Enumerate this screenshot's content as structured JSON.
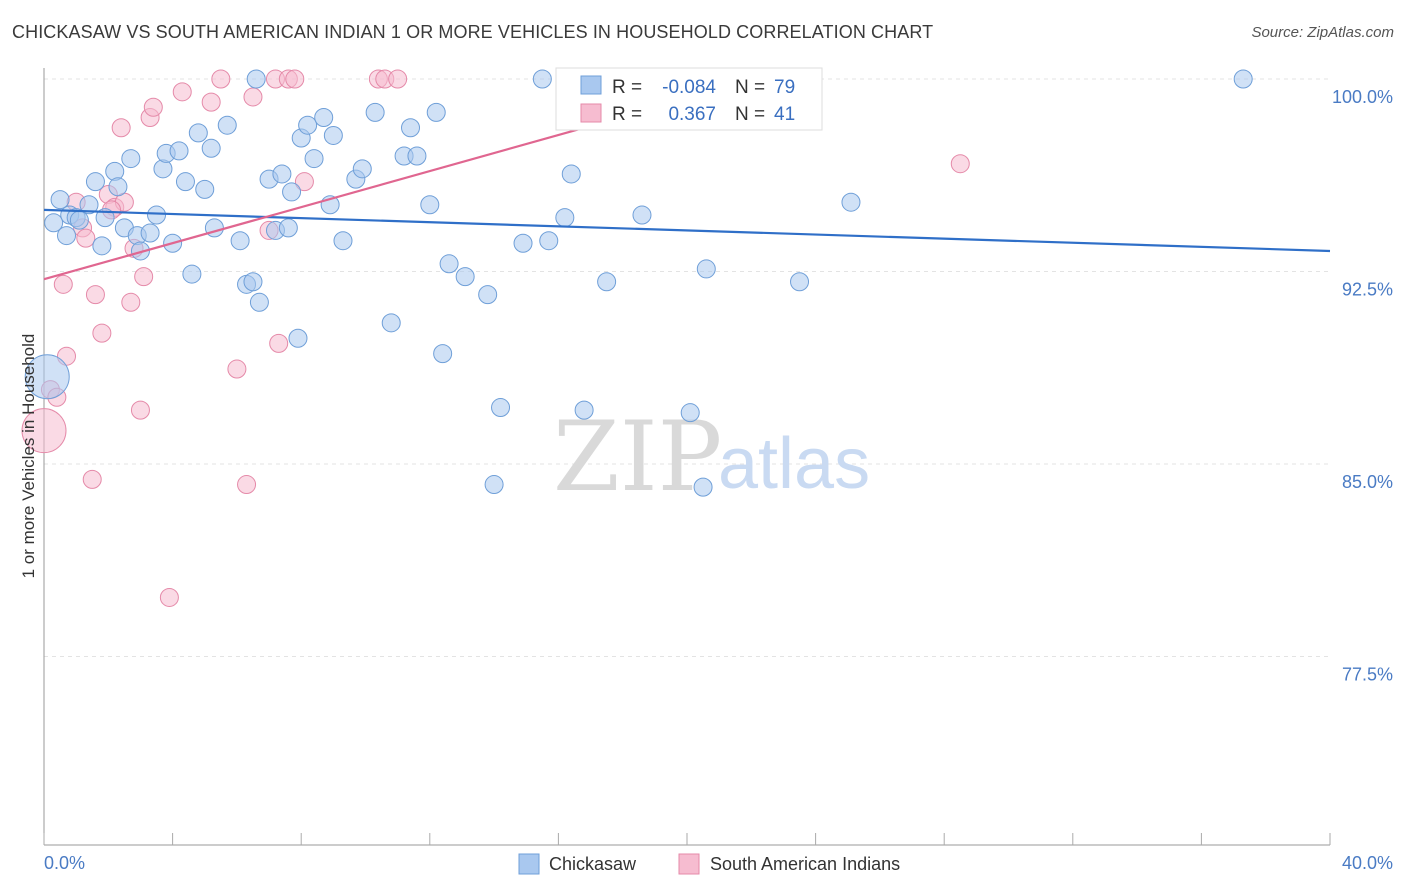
{
  "header": {
    "title": "CHICKASAW VS SOUTH AMERICAN INDIAN 1 OR MORE VEHICLES IN HOUSEHOLD CORRELATION CHART",
    "source": "Source: ZipAtlas.com"
  },
  "watermark": {
    "zip": "ZIP",
    "atlas": "atlas"
  },
  "colors": {
    "chickasaw_fill": "#a9c8ef",
    "chickasaw_stroke": "#6f9fd8",
    "chickasaw_line": "#2f6fc8",
    "sai_fill": "#f6bcd0",
    "sai_stroke": "#e58aa9",
    "sai_line": "#e06690",
    "tick_text": "#4a7bc4"
  },
  "stats": {
    "chickasaw": {
      "r_label": "R =",
      "r_value": "-0.084",
      "n_label": "N =",
      "n_value": "79"
    },
    "sai": {
      "r_label": "R =",
      "r_value": "0.367",
      "n_label": "N =",
      "n_value": "41"
    }
  },
  "chart_data": {
    "type": "scatter",
    "title": "CHICKASAW VS SOUTH AMERICAN INDIAN 1 OR MORE VEHICLES IN HOUSEHOLD CORRELATION CHART",
    "xlabel": "",
    "ylabel": "1 or more Vehicles in Household",
    "xlim": [
      0,
      40
    ],
    "ylim": [
      71.5,
      101.5
    ],
    "x_tick_labels": [
      {
        "value": 0,
        "label": "0.0%"
      },
      {
        "value": 40,
        "label": "40.0%"
      }
    ],
    "y_tick_labels": [
      {
        "value": 100,
        "label": "100.0%"
      },
      {
        "value": 92.5,
        "label": "92.5%"
      },
      {
        "value": 85,
        "label": "85.0%"
      },
      {
        "value": 77.5,
        "label": "77.5%"
      }
    ],
    "grid": true,
    "legend_position": "bottom-center",
    "series": [
      {
        "name": "Chickasaw",
        "trend": {
          "x": [
            0,
            40
          ],
          "y": [
            94.9,
            93.3
          ]
        },
        "points": [
          [
            0.1,
            88.4,
            22
          ],
          [
            0.3,
            94.4,
            9
          ],
          [
            0.5,
            95.3,
            9
          ],
          [
            0.7,
            93.9,
            9
          ],
          [
            0.8,
            94.7,
            9
          ],
          [
            1.0,
            94.6,
            9
          ],
          [
            1.1,
            94.5,
            9
          ],
          [
            1.4,
            95.1,
            9
          ],
          [
            1.6,
            96.0,
            9
          ],
          [
            1.8,
            93.5,
            9
          ],
          [
            1.9,
            94.6,
            9
          ],
          [
            2.2,
            96.4,
            9
          ],
          [
            2.3,
            95.8,
            9
          ],
          [
            2.5,
            94.2,
            9
          ],
          [
            2.7,
            96.9,
            9
          ],
          [
            2.9,
            93.9,
            9
          ],
          [
            3.0,
            93.3,
            9
          ],
          [
            3.3,
            94.0,
            9
          ],
          [
            3.5,
            94.7,
            9
          ],
          [
            3.7,
            96.5,
            9
          ],
          [
            3.8,
            97.1,
            9
          ],
          [
            4.0,
            93.6,
            9
          ],
          [
            4.2,
            97.2,
            9
          ],
          [
            4.4,
            96.0,
            9
          ],
          [
            4.6,
            92.4,
            9
          ],
          [
            4.8,
            97.9,
            9
          ],
          [
            5.0,
            95.7,
            9
          ],
          [
            5.2,
            97.3,
            9
          ],
          [
            5.3,
            94.2,
            9
          ],
          [
            5.7,
            98.2,
            9
          ],
          [
            6.1,
            93.7,
            9
          ],
          [
            6.3,
            92.0,
            9
          ],
          [
            6.5,
            92.1,
            9
          ],
          [
            6.6,
            100.0,
            9
          ],
          [
            6.7,
            91.3,
            9
          ],
          [
            7.0,
            96.1,
            9
          ],
          [
            7.2,
            94.1,
            9
          ],
          [
            7.4,
            96.3,
            9
          ],
          [
            7.6,
            94.2,
            9
          ],
          [
            7.7,
            95.6,
            9
          ],
          [
            7.9,
            89.9,
            9
          ],
          [
            8.0,
            97.7,
            9
          ],
          [
            8.2,
            98.2,
            9
          ],
          [
            8.4,
            96.9,
            9
          ],
          [
            8.7,
            98.5,
            9
          ],
          [
            8.9,
            95.1,
            9
          ],
          [
            9.0,
            97.8,
            9
          ],
          [
            9.3,
            93.7,
            9
          ],
          [
            9.7,
            96.1,
            9
          ],
          [
            9.9,
            96.5,
            9
          ],
          [
            10.3,
            98.7,
            9
          ],
          [
            10.8,
            90.5,
            9
          ],
          [
            11.2,
            97.0,
            9
          ],
          [
            11.4,
            98.1,
            9
          ],
          [
            11.6,
            97.0,
            9
          ],
          [
            12.0,
            95.1,
            9
          ],
          [
            12.2,
            98.7,
            9
          ],
          [
            12.4,
            89.3,
            9
          ],
          [
            12.6,
            92.8,
            9
          ],
          [
            13.1,
            92.3,
            9
          ],
          [
            13.8,
            91.6,
            9
          ],
          [
            14.0,
            84.2,
            9
          ],
          [
            14.2,
            87.2,
            9
          ],
          [
            14.9,
            93.6,
            9
          ],
          [
            15.5,
            100.0,
            9
          ],
          [
            15.7,
            93.7,
            9
          ],
          [
            16.2,
            94.6,
            9
          ],
          [
            16.4,
            96.3,
            9
          ],
          [
            16.8,
            87.1,
            9
          ],
          [
            17.5,
            92.1,
            9
          ],
          [
            18.1,
            100.0,
            9
          ],
          [
            18.6,
            94.7,
            9
          ],
          [
            20.1,
            87.0,
            9
          ],
          [
            20.5,
            84.1,
            9
          ],
          [
            20.6,
            92.6,
            9
          ],
          [
            23.5,
            92.1,
            9
          ],
          [
            25.1,
            95.2,
            9
          ],
          [
            37.3,
            100.0,
            9
          ],
          [
            0.0,
            100.0,
            0
          ]
        ]
      },
      {
        "name": "South American Indians",
        "trend": {
          "x": [
            0,
            22.5
          ],
          "y": [
            92.2,
            100.1
          ]
        },
        "points": [
          [
            0.0,
            86.3,
            22
          ],
          [
            0.2,
            87.9,
            9
          ],
          [
            0.4,
            87.6,
            9
          ],
          [
            0.6,
            92.0,
            9
          ],
          [
            0.7,
            89.2,
            9
          ],
          [
            1.0,
            95.2,
            9
          ],
          [
            1.2,
            94.2,
            9
          ],
          [
            1.3,
            93.8,
            9
          ],
          [
            1.6,
            91.6,
            9
          ],
          [
            1.8,
            90.1,
            9
          ],
          [
            2.0,
            95.5,
            9
          ],
          [
            2.2,
            95.0,
            9
          ],
          [
            2.4,
            98.1,
            9
          ],
          [
            2.5,
            95.2,
            9
          ],
          [
            2.7,
            91.3,
            9
          ],
          [
            2.8,
            93.4,
            9
          ],
          [
            3.0,
            87.1,
            9
          ],
          [
            3.1,
            92.3,
            9
          ],
          [
            3.3,
            98.5,
            9
          ],
          [
            3.4,
            98.9,
            9
          ],
          [
            1.5,
            84.4,
            9
          ],
          [
            3.9,
            79.8,
            9
          ],
          [
            4.3,
            99.5,
            9
          ],
          [
            5.2,
            99.1,
            9
          ],
          [
            5.5,
            100.0,
            9
          ],
          [
            6.0,
            88.7,
            9
          ],
          [
            6.3,
            84.2,
            9
          ],
          [
            6.5,
            99.3,
            9
          ],
          [
            7.0,
            94.1,
            9
          ],
          [
            7.2,
            100.0,
            9
          ],
          [
            7.3,
            89.7,
            9
          ],
          [
            7.6,
            100.0,
            9
          ],
          [
            7.8,
            100.0,
            9
          ],
          [
            8.1,
            96.0,
            9
          ],
          [
            10.4,
            100.0,
            9
          ],
          [
            10.6,
            100.0,
            9
          ],
          [
            11.0,
            100.0,
            9
          ],
          [
            22.2,
            100.0,
            9
          ],
          [
            22.5,
            100.0,
            9
          ],
          [
            28.5,
            96.7,
            9
          ],
          [
            2.1,
            94.9,
            9
          ]
        ]
      }
    ]
  },
  "axes": {
    "ylabel": "1 or more Vehicles in Household",
    "x_left": "0.0%",
    "x_right": "40.0%"
  },
  "legend": {
    "items": [
      {
        "label": "Chickasaw"
      },
      {
        "label": "South American Indians"
      }
    ]
  }
}
